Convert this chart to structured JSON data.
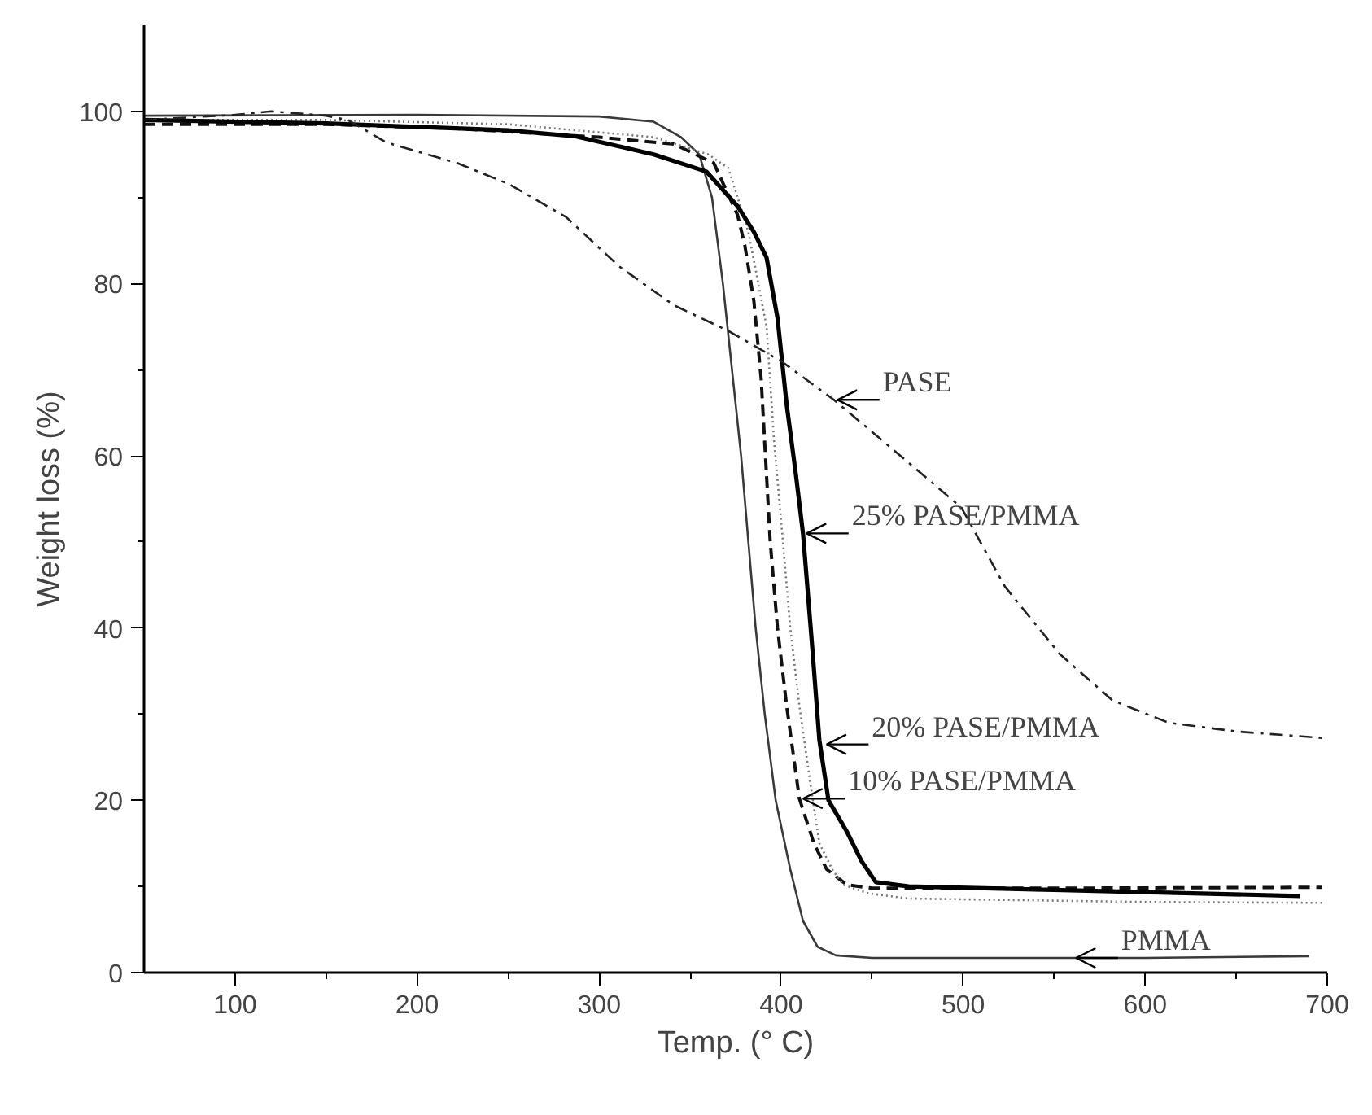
{
  "chart_data": {
    "type": "line",
    "xlabel": "Temp. (° C)",
    "ylabel": "Weight loss (%)",
    "xlim": [
      50,
      700
    ],
    "ylim": [
      0,
      110
    ],
    "xticks": [
      100,
      {
        "value": 150,
        "label": null
      },
      200,
      {
        "value": 250,
        "label": null
      },
      300,
      {
        "value": 350,
        "label": null
      },
      400,
      {
        "value": 450,
        "label": null
      },
      500,
      {
        "value": 550,
        "label": null
      },
      600,
      {
        "value": 650,
        "label": null
      },
      700
    ],
    "yticks": [
      0,
      {
        "value": 10,
        "label": null
      },
      20,
      {
        "value": 30,
        "label": null
      },
      40,
      {
        "value": 50,
        "label": null
      },
      60,
      {
        "value": 70,
        "label": null
      },
      80,
      {
        "value": 90,
        "label": null
      },
      100
    ],
    "marker": "none",
    "series": [
      {
        "color": "#3a3a3a",
        "line_style": "solid",
        "x": [
          50,
          200,
          300,
          330,
          345,
          355,
          362,
          368,
          373,
          378,
          382,
          386,
          391,
          397,
          405,
          412,
          420,
          430,
          450,
          600,
          690
        ],
        "values": [
          99.5,
          99.6,
          99.4,
          98.8,
          97,
          95,
          90,
          80,
          70,
          60,
          50,
          40,
          30,
          20,
          12,
          6,
          3,
          2,
          1.7,
          1.7,
          1.9
        ]
      },
      {
        "color": "#111111",
        "line_style": "dashed",
        "x": [
          50,
          150,
          222,
          300,
          341,
          363,
          376,
          380,
          385,
          389,
          394,
          398,
          403,
          410,
          418,
          425,
          436,
          450,
          550,
          697
        ],
        "values": [
          98.5,
          98.5,
          98,
          97,
          96.2,
          94,
          88,
          84.5,
          78,
          69,
          50,
          40,
          31,
          20.2,
          15,
          12,
          10.2,
          9.8,
          9.8,
          9.9
        ]
      },
      {
        "color": "#777777",
        "line_style": "dotted",
        "x": [
          50,
          150,
          250,
          330,
          360,
          371,
          382,
          392,
          396,
          401,
          405,
          410,
          416,
          421,
          428,
          434,
          448,
          470,
          600,
          697
        ],
        "values": [
          99,
          99,
          98.5,
          97,
          95,
          93.4,
          86,
          75,
          62,
          50,
          40,
          31,
          22,
          15,
          12,
          10.2,
          9.2,
          8.6,
          8.2,
          8.1
        ]
      },
      {
        "color": "#000000",
        "line_style": "solid",
        "x": [
          50,
          150,
          250,
          287,
          330,
          359,
          376,
          385,
          392,
          398,
          403,
          408,
          412,
          417,
          421,
          426,
          436,
          444,
          452,
          470,
          550,
          685
        ],
        "values": [
          99,
          98.6,
          97.8,
          97.1,
          95,
          93,
          89,
          86,
          83,
          76,
          66,
          58,
          51,
          38,
          27,
          20,
          16.4,
          13,
          10.5,
          10,
          9.6,
          8.9
        ]
      },
      {
        "color": "#222222",
        "line_style": "dashdot",
        "x": [
          50,
          100,
          120,
          150,
          162,
          183,
          222,
          251,
          282,
          311,
          341,
          371,
          400,
          429,
          460,
          499,
          523,
          553,
          582,
          613,
          650,
          700
        ],
        "values": [
          99,
          99.6,
          100,
          99.5,
          99,
          96.4,
          94,
          91.5,
          87.7,
          82,
          77.5,
          74.5,
          71,
          66.5,
          61,
          54,
          44.8,
          37,
          31.6,
          29,
          28,
          27.2
        ]
      }
    ],
    "annotations": [
      {
        "text": "PASE",
        "x": 429,
        "y": 66.5
      },
      {
        "text": "25% PASE/PMMA",
        "x": 412,
        "y": 51
      },
      {
        "text": "20% PASE/PMMA",
        "x": 423,
        "y": 26.5
      },
      {
        "text": "10% PASE/PMMA",
        "x": 410,
        "y": 20.2
      },
      {
        "text": "PMMA",
        "x": 560,
        "y": 1.7
      }
    ]
  }
}
